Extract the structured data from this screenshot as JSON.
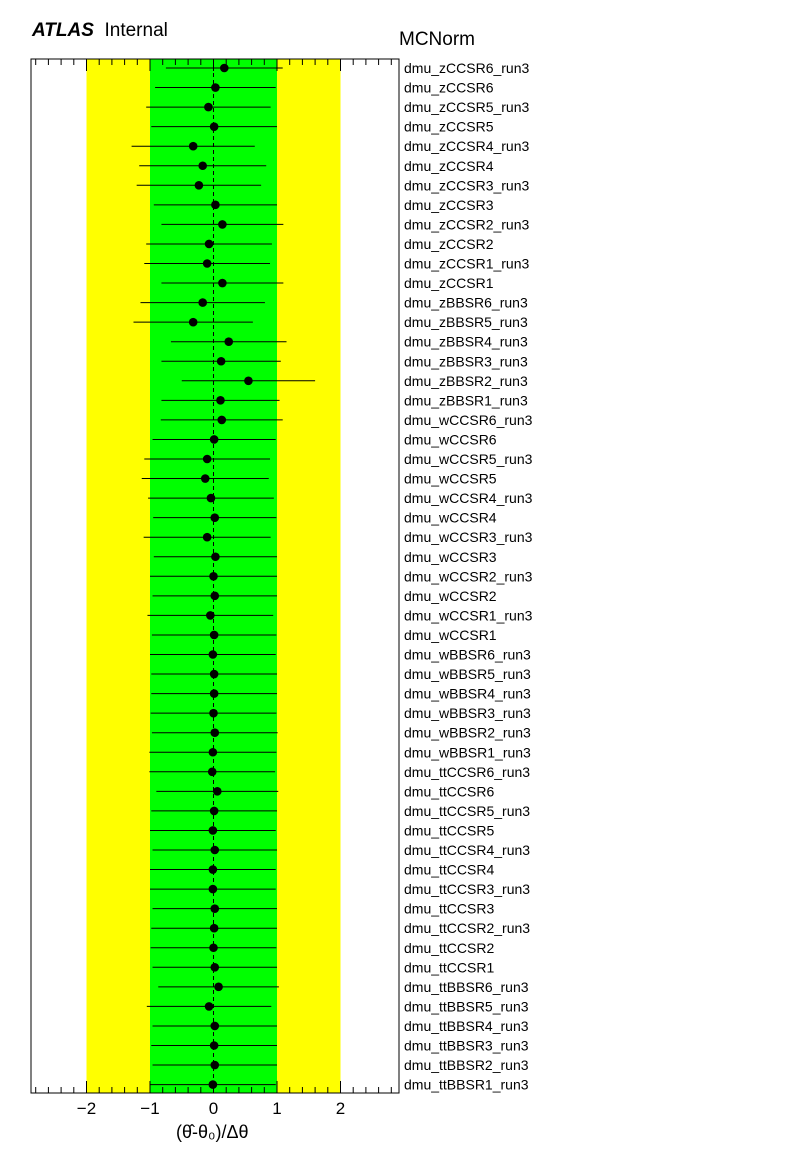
{
  "header": {
    "experiment": "ATLAS",
    "status": "Internal",
    "fit_name": "MCNorm"
  },
  "chart_data": {
    "type": "scatter",
    "orientation": "horizontal",
    "xlabel": "(θ̂-θ₀)/Δθ",
    "xlim": [
      -2.9,
      2.9
    ],
    "xticks": [
      -2,
      -1,
      0,
      1,
      2
    ],
    "xtick_labels": [
      "−2",
      "−1",
      "0",
      "1",
      "2"
    ],
    "bands": [
      {
        "name": "2 sigma",
        "range": [
          -2,
          2
        ],
        "color": "#ffff00"
      },
      {
        "name": "1 sigma",
        "range": [
          -1,
          1
        ],
        "color": "#00ff00"
      }
    ],
    "reference_line": 0,
    "grid": false,
    "labels": [
      "dmu_zCCSR6_run3",
      "dmu_zCCSR6",
      "dmu_zCCSR5_run3",
      "dmu_zCCSR5",
      "dmu_zCCSR4_run3",
      "dmu_zCCSR4",
      "dmu_zCCSR3_run3",
      "dmu_zCCSR3",
      "dmu_zCCSR2_run3",
      "dmu_zCCSR2",
      "dmu_zCCSR1_run3",
      "dmu_zCCSR1",
      "dmu_zBBSR6_run3",
      "dmu_zBBSR5_run3",
      "dmu_zBBSR4_run3",
      "dmu_zBBSR3_run3",
      "dmu_zBBSR2_run3",
      "dmu_zBBSR1_run3",
      "dmu_wCCSR6_run3",
      "dmu_wCCSR6",
      "dmu_wCCSR5_run3",
      "dmu_wCCSR5",
      "dmu_wCCSR4_run3",
      "dmu_wCCSR4",
      "dmu_wCCSR3_run3",
      "dmu_wCCSR3",
      "dmu_wCCSR2_run3",
      "dmu_wCCSR2",
      "dmu_wCCSR1_run3",
      "dmu_wCCSR1",
      "dmu_wBBSR6_run3",
      "dmu_wBBSR5_run3",
      "dmu_wBBSR4_run3",
      "dmu_wBBSR3_run3",
      "dmu_wBBSR2_run3",
      "dmu_wBBSR1_run3",
      "dmu_ttCCSR6_run3",
      "dmu_ttCCSR6",
      "dmu_ttCCSR5_run3",
      "dmu_ttCCSR5",
      "dmu_ttCCSR4_run3",
      "dmu_ttCCSR4",
      "dmu_ttCCSR3_run3",
      "dmu_ttCCSR3",
      "dmu_ttCCSR2_run3",
      "dmu_ttCCSR2",
      "dmu_ttCCSR1",
      "dmu_ttBBSR6_run3",
      "dmu_ttBBSR5_run3",
      "dmu_ttBBSR4_run3",
      "dmu_ttBBSR3_run3",
      "dmu_ttBBSR2_run3",
      "dmu_ttBBSR1_run3"
    ],
    "values": [
      0.17,
      0.03,
      -0.08,
      0.01,
      -0.32,
      -0.17,
      -0.23,
      0.03,
      0.14,
      -0.07,
      -0.1,
      0.14,
      -0.17,
      -0.32,
      0.24,
      0.12,
      0.55,
      0.11,
      0.13,
      0.01,
      -0.1,
      -0.13,
      -0.04,
      0.02,
      -0.1,
      0.03,
      0.0,
      0.02,
      -0.05,
      0.01,
      -0.01,
      0.01,
      0.01,
      0.0,
      0.02,
      -0.01,
      -0.02,
      0.06,
      0.01,
      -0.01,
      0.02,
      -0.01,
      -0.01,
      0.02,
      0.01,
      0.0,
      0.02,
      0.08,
      -0.07,
      0.02,
      0.01,
      0.02,
      -0.01
    ],
    "errors_low": [
      0.92,
      0.95,
      0.98,
      0.99,
      0.97,
      1.0,
      0.98,
      0.97,
      0.96,
      0.99,
      0.99,
      0.96,
      0.98,
      0.94,
      0.91,
      0.94,
      1.05,
      0.93,
      0.96,
      0.97,
      0.99,
      1.0,
      0.99,
      0.97,
      1.0,
      0.97,
      1.0,
      0.98,
      0.99,
      0.98,
      0.99,
      0.99,
      0.99,
      0.99,
      0.99,
      1.0,
      0.99,
      0.96,
      0.99,
      0.99,
      0.98,
      0.99,
      0.99,
      0.98,
      0.99,
      0.99,
      0.98,
      0.95,
      0.98,
      0.98,
      0.99,
      0.98,
      0.99
    ],
    "errors_high": [
      0.92,
      0.95,
      0.98,
      0.99,
      0.97,
      1.0,
      0.98,
      0.97,
      0.96,
      0.99,
      0.99,
      0.96,
      0.98,
      0.94,
      0.91,
      0.94,
      1.05,
      0.93,
      0.96,
      0.97,
      0.99,
      1.0,
      0.99,
      0.97,
      1.0,
      0.97,
      1.0,
      0.98,
      0.99,
      0.98,
      0.99,
      0.99,
      0.99,
      0.99,
      0.99,
      1.0,
      0.99,
      0.96,
      0.99,
      0.99,
      0.98,
      0.99,
      0.99,
      0.98,
      0.99,
      0.99,
      0.98,
      0.95,
      0.98,
      0.98,
      0.99,
      0.98,
      0.99
    ],
    "colors": {
      "outer_band": "#ffff00",
      "inner_band": "#00ff00",
      "marker": "#000000",
      "frame": "#000000"
    }
  }
}
